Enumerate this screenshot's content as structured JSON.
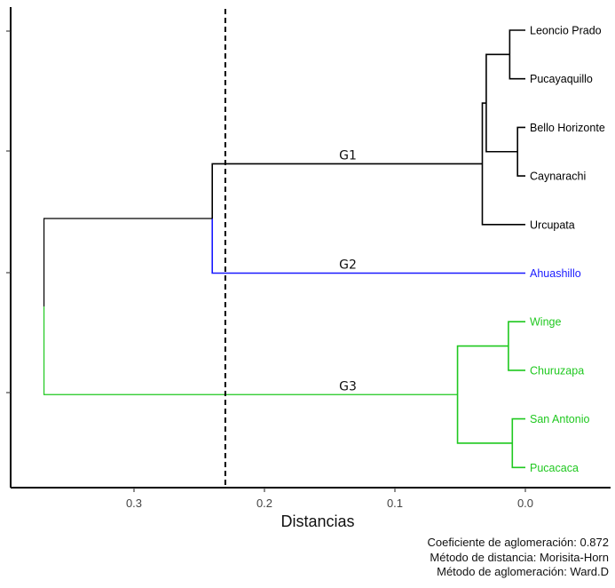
{
  "chart_data": {
    "type": "dendrogram",
    "orientation": "horizontal, leaves on right",
    "xlabel": "Distancias",
    "x_ticks": [
      0.3,
      0.2,
      0.1,
      0.0
    ],
    "x_tick_labels": [
      "0.3",
      "0.2",
      "0.1",
      "0.0"
    ],
    "xlim": [
      0.37,
      -0.065
    ],
    "cut_height": 0.23,
    "colors": {
      "G1": "#000000",
      "G2": "#1a1aff",
      "G3": "#1fc81f",
      "root": "#000000",
      "cut_line": "#000000"
    },
    "leaves": [
      {
        "label": "Leoncio Prado",
        "group": "G1"
      },
      {
        "label": "Pucayaquillo",
        "group": "G1"
      },
      {
        "label": "Bello Horizonte",
        "group": "G1"
      },
      {
        "label": "Caynarachi",
        "group": "G1"
      },
      {
        "label": "Urcupata",
        "group": "G1"
      },
      {
        "label": "Ahuashillo",
        "group": "G2"
      },
      {
        "label": "Winge",
        "group": "G3"
      },
      {
        "label": "Churuzapa",
        "group": "G3"
      },
      {
        "label": "San Antonio",
        "group": "G3"
      },
      {
        "label": "Pucacaca",
        "group": "G3"
      }
    ],
    "merges": [
      {
        "left": "Leoncio Prado",
        "right": "Pucayaquillo",
        "height": 0.012,
        "group": "G1"
      },
      {
        "left": "Bello Horizonte",
        "right": "Caynarachi",
        "height": 0.006,
        "group": "G1"
      },
      {
        "left": "Leoncio Prado + Pucayaquillo",
        "right": "Bello Horizonte + Caynarachi",
        "height": 0.03,
        "group": "G1"
      },
      {
        "left": "Leoncio Prado + Pucayaquillo + Bello Horizonte + Caynarachi",
        "right": "Urcupata",
        "height": 0.033,
        "group": "G1"
      },
      {
        "left": "G1",
        "right": "Ahuashillo",
        "height": 0.24,
        "group": "G1-G2"
      },
      {
        "left": "Winge",
        "right": "Churuzapa",
        "height": 0.013,
        "group": "G3"
      },
      {
        "left": "San Antonio",
        "right": "Pucacaca",
        "height": 0.01,
        "group": "G3"
      },
      {
        "left": "Winge + Churuzapa",
        "right": "San Antonio + Pucacaca",
        "height": 0.052,
        "group": "G3"
      },
      {
        "left": "G1-G2",
        "right": "G3",
        "height": 0.369,
        "group": "root"
      }
    ],
    "group_labels": [
      "G1",
      "G2",
      "G3"
    ]
  },
  "stats": {
    "coef_label": "Coeficiente de aglomeración: 0.872",
    "distance_method": "Método de distancia: Morisita-Horn",
    "agglomeration_method": "Método de aglomeración: Ward.D"
  }
}
